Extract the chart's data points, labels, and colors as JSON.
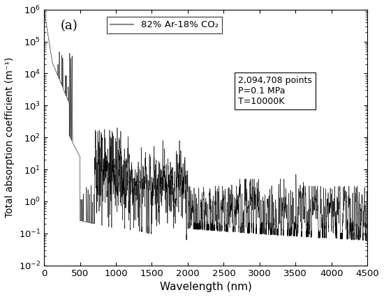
{
  "xlabel": "Wavelength (nm)",
  "ylabel": "Total absorption coefficient (m⁻¹)",
  "label_panel": "(a)",
  "legend_label": "82% Ar-18% CO₂",
  "annotation_text": "2,094,708 points\nP=0.1 MPa\nT=10000K",
  "xlim": [
    0,
    4500
  ],
  "ylim_log": [
    -2,
    6
  ],
  "line_color_dark": "#000000",
  "line_color_gray": "#888888",
  "background_color": "#ffffff",
  "figsize": [
    5.5,
    4.26
  ],
  "dpi": 100,
  "seed": 42
}
